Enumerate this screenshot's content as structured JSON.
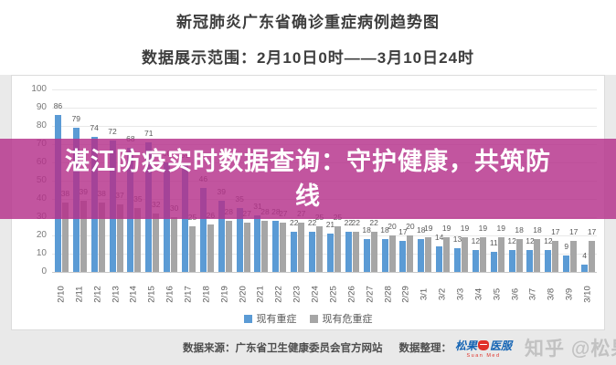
{
  "header": {
    "title": "新冠肺炎广东省确诊重症病例趋势图",
    "subtitle": "数据展示范围：2月10日0时——3月10日24时"
  },
  "overlay_banner": {
    "text": "湛江防疫实时数据查询：守护健康，共筑防线",
    "color": "#b5308a"
  },
  "chart_data": {
    "type": "bar",
    "title": "新冠肺炎广东省确诊重症病例趋势图",
    "categories": [
      "2/10",
      "2/11",
      "2/12",
      "2/13",
      "2/14",
      "2/15",
      "2/16",
      "2/17",
      "2/18",
      "2/19",
      "2/20",
      "2/21",
      "2/22",
      "2/23",
      "2/24",
      "2/25",
      "2/26",
      "2/27",
      "2/28",
      "2/29",
      "3/1",
      "3/2",
      "3/3",
      "3/4",
      "3/5",
      "3/6",
      "3/7",
      "3/8",
      "3/9",
      "3/10"
    ],
    "series": [
      {
        "name": "现有重症",
        "color": "#5b9bd5",
        "values": [
          86,
          79,
          74,
          72,
          68,
          71,
          60,
          59,
          46,
          39,
          35,
          31,
          28,
          22,
          22,
          21,
          22,
          18,
          18,
          17,
          18,
          14,
          13,
          12,
          11,
          12,
          12,
          12,
          9,
          4
        ]
      },
      {
        "name": "现有危重症",
        "color": "#a6a6a6",
        "values": [
          38,
          39,
          38,
          37,
          35,
          32,
          30,
          25,
          26,
          28,
          27,
          28,
          27,
          27,
          25,
          25,
          22,
          22,
          20,
          20,
          19,
          19,
          19,
          19,
          19,
          18,
          18,
          17,
          17,
          17
        ]
      }
    ],
    "ylim": [
      0,
      100
    ],
    "yticks": [
      0,
      10,
      20,
      30,
      40,
      50,
      60,
      70,
      80,
      90,
      100
    ],
    "grid": true,
    "legend_position": "bottom",
    "bar_labels": true
  },
  "footer": {
    "source_label": "数据来源：",
    "source": "广东省卫生健康委员会官方网站",
    "editor_label": "数据整理：",
    "logo": {
      "part1": "松果",
      "part2": "医服",
      "sub": "Suan Med"
    },
    "watermark": "知乎 @松果医服"
  }
}
